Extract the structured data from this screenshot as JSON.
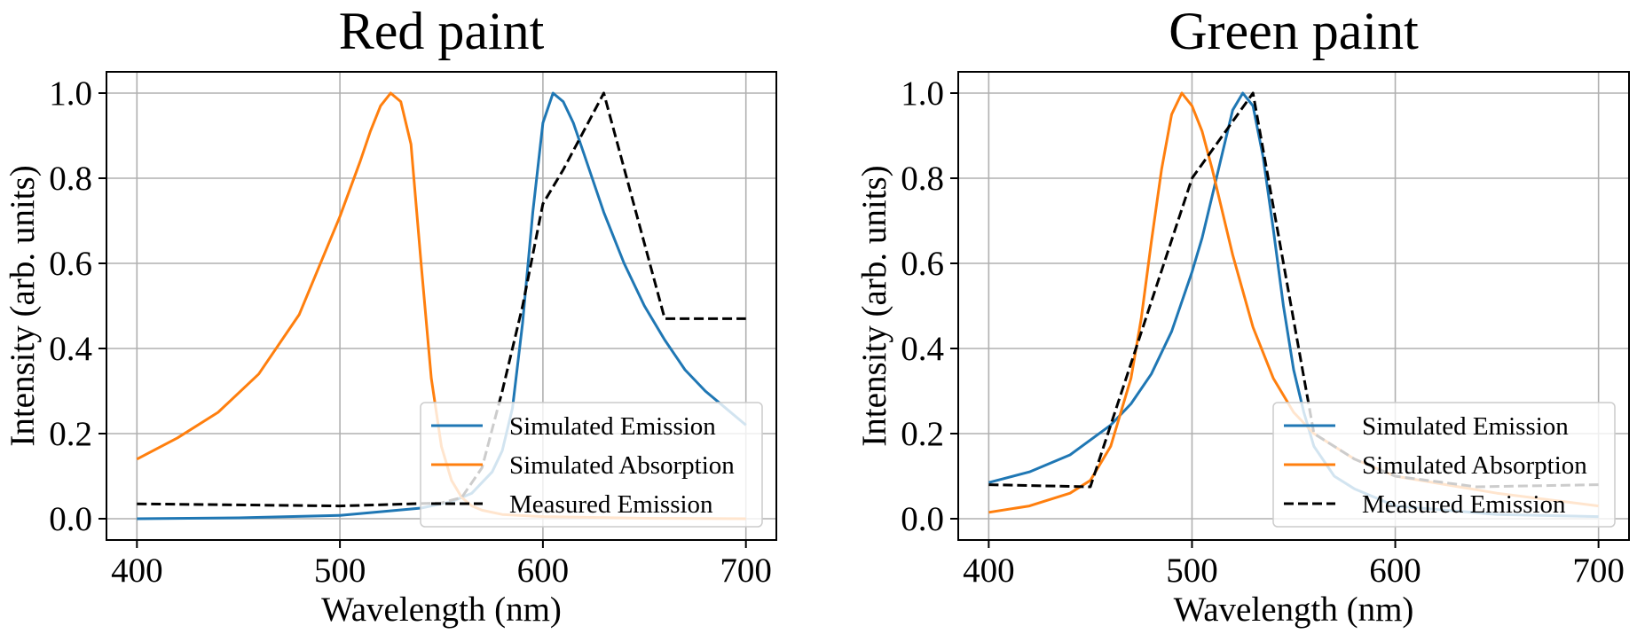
{
  "chart_data": [
    {
      "type": "line",
      "title": "Red paint",
      "xlabel": "Wavelength (nm)",
      "ylabel": "Intensity (arb. units)",
      "xlim": [
        385,
        715
      ],
      "ylim": [
        -0.05,
        1.05
      ],
      "xticks": [
        400,
        500,
        600,
        700
      ],
      "yticks": [
        0.0,
        0.2,
        0.4,
        0.6,
        0.8,
        1.0
      ],
      "xtick_labels": [
        "400",
        "500",
        "600",
        "700"
      ],
      "ytick_labels": [
        "0.0",
        "0.2",
        "0.4",
        "0.6",
        "0.8",
        "1.0"
      ],
      "grid": true,
      "legend_position": "lower-right",
      "series": [
        {
          "name": "Simulated Emission",
          "color": "#1f77b4",
          "style": "solid",
          "x": [
            400,
            450,
            500,
            540,
            555,
            565,
            575,
            580,
            585,
            590,
            595,
            600,
            605,
            610,
            615,
            620,
            625,
            630,
            640,
            650,
            660,
            670,
            680,
            690,
            700
          ],
          "y": [
            0.0,
            0.002,
            0.008,
            0.025,
            0.04,
            0.06,
            0.11,
            0.16,
            0.26,
            0.46,
            0.72,
            0.93,
            1.0,
            0.98,
            0.93,
            0.86,
            0.79,
            0.72,
            0.6,
            0.5,
            0.42,
            0.35,
            0.3,
            0.26,
            0.22
          ]
        },
        {
          "name": "Simulated Absorption",
          "color": "#ff7f0e",
          "style": "solid",
          "x": [
            400,
            420,
            440,
            460,
            480,
            500,
            510,
            515,
            520,
            525,
            530,
            535,
            540,
            545,
            550,
            555,
            560,
            565,
            570,
            580,
            600,
            650,
            700
          ],
          "y": [
            0.14,
            0.19,
            0.25,
            0.34,
            0.48,
            0.71,
            0.84,
            0.91,
            0.97,
            1.0,
            0.98,
            0.88,
            0.6,
            0.33,
            0.17,
            0.09,
            0.05,
            0.03,
            0.02,
            0.01,
            0.005,
            0.001,
            0.0
          ]
        },
        {
          "name": "Measured Emission",
          "color": "#000000",
          "style": "dashed",
          "x": [
            400,
            500,
            550,
            560,
            570,
            580,
            590,
            600,
            610,
            620,
            630,
            660,
            700
          ],
          "y": [
            0.035,
            0.03,
            0.037,
            0.05,
            0.12,
            0.3,
            0.5,
            0.74,
            0.82,
            0.91,
            1.0,
            0.47,
            0.47
          ]
        }
      ]
    },
    {
      "type": "line",
      "title": "Green paint",
      "xlabel": "Wavelength (nm)",
      "ylabel": "Intensity (arb. units)",
      "xlim": [
        385,
        715
      ],
      "ylim": [
        -0.05,
        1.05
      ],
      "xticks": [
        400,
        500,
        600,
        700
      ],
      "yticks": [
        0.0,
        0.2,
        0.4,
        0.6,
        0.8,
        1.0
      ],
      "xtick_labels": [
        "400",
        "500",
        "600",
        "700"
      ],
      "ytick_labels": [
        "0.0",
        "0.2",
        "0.4",
        "0.6",
        "0.8",
        "1.0"
      ],
      "grid": true,
      "legend_position": "lower-right",
      "series": [
        {
          "name": "Simulated Emission",
          "color": "#1f77b4",
          "style": "solid",
          "x": [
            400,
            420,
            440,
            460,
            470,
            480,
            490,
            500,
            505,
            510,
            515,
            520,
            525,
            530,
            535,
            540,
            545,
            550,
            555,
            560,
            570,
            580,
            600,
            650,
            700
          ],
          "y": [
            0.085,
            0.11,
            0.15,
            0.22,
            0.27,
            0.34,
            0.44,
            0.58,
            0.66,
            0.76,
            0.86,
            0.96,
            1.0,
            0.97,
            0.85,
            0.68,
            0.5,
            0.35,
            0.25,
            0.17,
            0.1,
            0.07,
            0.03,
            0.01,
            0.005
          ]
        },
        {
          "name": "Simulated Absorption",
          "color": "#ff7f0e",
          "style": "solid",
          "x": [
            400,
            420,
            440,
            450,
            460,
            470,
            475,
            480,
            485,
            490,
            495,
            500,
            505,
            510,
            520,
            530,
            540,
            550,
            560,
            580,
            600,
            650,
            700
          ],
          "y": [
            0.015,
            0.03,
            0.06,
            0.09,
            0.17,
            0.33,
            0.47,
            0.65,
            0.82,
            0.95,
            1.0,
            0.97,
            0.91,
            0.82,
            0.62,
            0.45,
            0.33,
            0.25,
            0.2,
            0.14,
            0.1,
            0.06,
            0.03
          ]
        },
        {
          "name": "Measured Emission",
          "color": "#000000",
          "style": "dashed",
          "x": [
            400,
            450,
            500,
            530,
            560,
            580,
            600,
            640,
            700
          ],
          "y": [
            0.08,
            0.075,
            0.8,
            1.0,
            0.2,
            0.14,
            0.1,
            0.075,
            0.08
          ]
        }
      ]
    }
  ]
}
